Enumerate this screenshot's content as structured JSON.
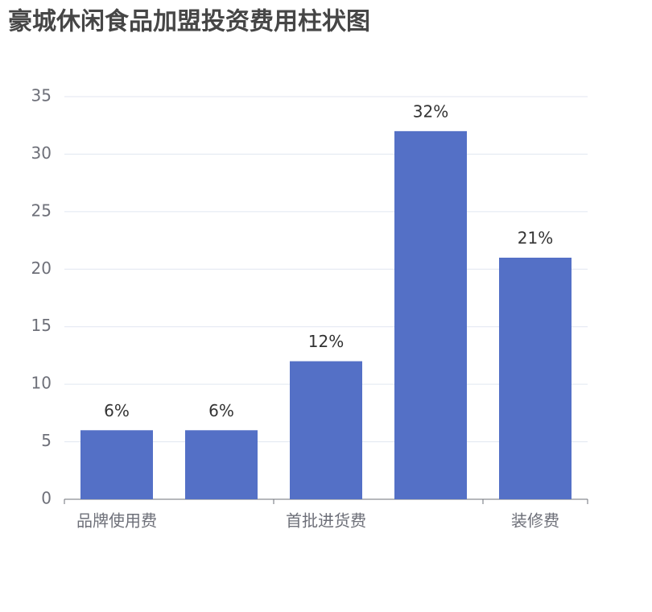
{
  "chart_data": {
    "type": "bar",
    "title": "豪城休闲食品加盟投资费用柱状图",
    "categories": [
      "品牌使用费",
      null,
      "首批进货费",
      null,
      "装修费"
    ],
    "values": [
      6,
      6,
      12,
      32,
      21
    ],
    "value_labels": [
      "6%",
      "6%",
      "12%",
      "32%",
      "21%"
    ],
    "color": "#5470c6",
    "ylim": [
      0,
      35
    ],
    "yticks": [
      0,
      5,
      10,
      15,
      20,
      25,
      30,
      35
    ],
    "grid": true
  }
}
